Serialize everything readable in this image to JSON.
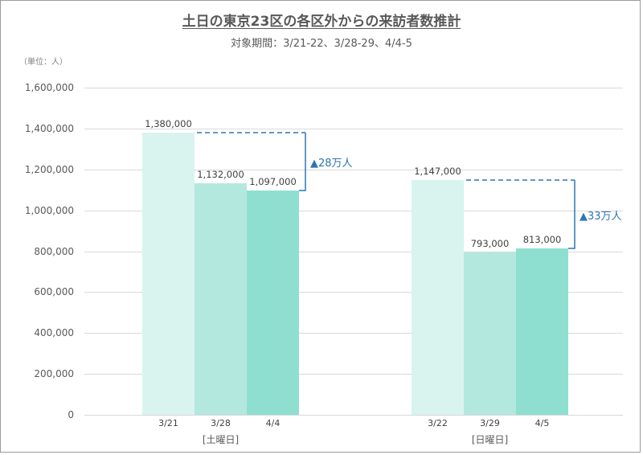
{
  "chart_data": {
    "type": "bar",
    "title": "土日の東京23区の各区外からの来訪者数推計",
    "subtitle": "対象期間：3/21-22、3/28-29、4/4-5",
    "unit_label": "（単位：人）",
    "xlabel": "",
    "ylabel": "",
    "ylim": [
      0,
      1600000
    ],
    "yticks": [
      "1,600,000",
      "1,400,000",
      "1,200,000",
      "1,000,000",
      "800,000",
      "600,000",
      "400,000",
      "200,000",
      "0"
    ],
    "grid": true,
    "groups": [
      {
        "label": "[土曜日]",
        "categories": [
          "3/21",
          "3/28",
          "4/4"
        ],
        "values": [
          1380000,
          1132000,
          1097000
        ],
        "value_labels": [
          "1,380,000",
          "1,132,000",
          "1,097,000"
        ],
        "annotation": "▲28万人"
      },
      {
        "label": "[日曜日]",
        "categories": [
          "3/22",
          "3/29",
          "4/5"
        ],
        "values": [
          1147000,
          793000,
          813000
        ],
        "value_labels": [
          "1,147,000",
          "793,000",
          "813,000"
        ],
        "annotation": "▲33万人"
      }
    ],
    "series_colors": [
      "#d9f4ef",
      "#b3e8df",
      "#8fdfd1"
    ],
    "annotation_color": "#2e75b6"
  }
}
